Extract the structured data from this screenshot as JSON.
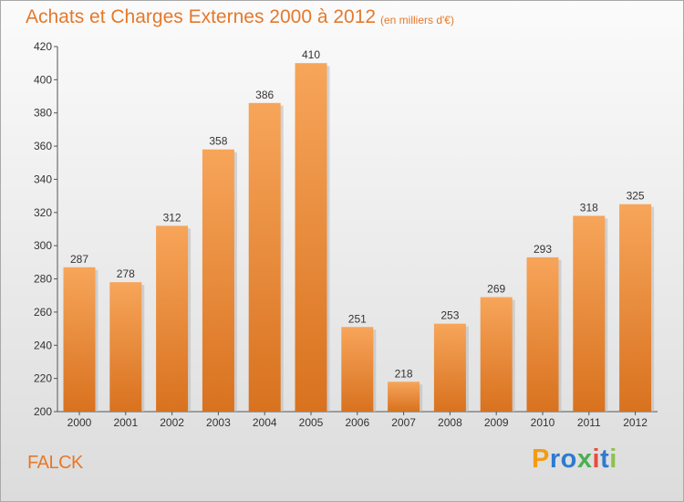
{
  "title": "Achats et Charges Externes 2000 à 2012",
  "unit": "(en milliers d'€)",
  "place": "FALCK",
  "logo": {
    "letters": [
      "P",
      "r",
      "o",
      "x",
      "i",
      "t",
      "i"
    ],
    "colors": [
      "#f39c12",
      "#2e7bcf",
      "#2e7bcf",
      "#4caf50",
      "#e74c3c",
      "#2e7bcf",
      "#8bc34a"
    ]
  },
  "colors": {
    "bar_top": "#f7a55a",
    "bar_bottom": "#d8721f",
    "text_accent": "#e6782a"
  },
  "chart_data": {
    "type": "bar",
    "categories": [
      "2000",
      "2001",
      "2002",
      "2003",
      "2004",
      "2005",
      "2006",
      "2007",
      "2008",
      "2009",
      "2010",
      "2011",
      "2012"
    ],
    "values": [
      287,
      278,
      312,
      358,
      386,
      410,
      251,
      218,
      253,
      269,
      293,
      318,
      325
    ],
    "ylim": [
      200,
      420
    ],
    "yticks": [
      200,
      220,
      240,
      260,
      280,
      300,
      320,
      340,
      360,
      380,
      400,
      420
    ],
    "grid": false,
    "legend": "none"
  }
}
